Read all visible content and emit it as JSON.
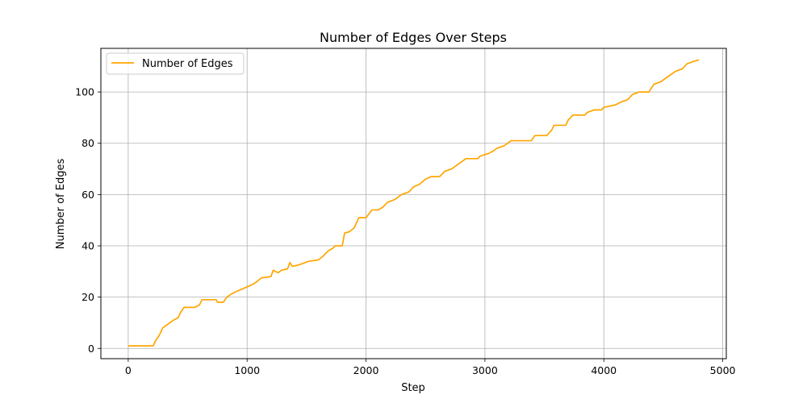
{
  "chart_data": {
    "type": "line",
    "title": "Number of Edges Over Steps",
    "xlabel": "Step",
    "ylabel": "Number of Edges",
    "xlim": [
      -230,
      5030
    ],
    "ylim": [
      -4,
      117
    ],
    "xticks": [
      0,
      1000,
      2000,
      3000,
      4000,
      5000
    ],
    "yticks": [
      0,
      20,
      40,
      60,
      80,
      100
    ],
    "grid": true,
    "legend_position": "top-left",
    "series": [
      {
        "name": "Number of Edges",
        "color": "#ffa500",
        "points": [
          [
            0,
            1
          ],
          [
            210,
            1
          ],
          [
            230,
            3
          ],
          [
            260,
            5
          ],
          [
            290,
            8
          ],
          [
            320,
            9
          ],
          [
            350,
            10
          ],
          [
            380,
            11
          ],
          [
            420,
            12
          ],
          [
            440,
            14
          ],
          [
            470,
            16
          ],
          [
            560,
            16
          ],
          [
            600,
            17
          ],
          [
            620,
            19
          ],
          [
            740,
            19
          ],
          [
            750,
            18
          ],
          [
            800,
            18
          ],
          [
            830,
            20
          ],
          [
            860,
            21
          ],
          [
            900,
            22
          ],
          [
            950,
            23
          ],
          [
            1000,
            24
          ],
          [
            1050,
            25
          ],
          [
            1080,
            26
          ],
          [
            1120,
            27.5
          ],
          [
            1200,
            28
          ],
          [
            1220,
            30.5
          ],
          [
            1240,
            30
          ],
          [
            1260,
            29.5
          ],
          [
            1290,
            30.5
          ],
          [
            1340,
            31
          ],
          [
            1360,
            33.5
          ],
          [
            1380,
            32
          ],
          [
            1430,
            32.5
          ],
          [
            1460,
            33
          ],
          [
            1520,
            34
          ],
          [
            1600,
            34.5
          ],
          [
            1640,
            36
          ],
          [
            1680,
            38
          ],
          [
            1720,
            39
          ],
          [
            1740,
            40
          ],
          [
            1800,
            40
          ],
          [
            1820,
            45
          ],
          [
            1860,
            45.5
          ],
          [
            1900,
            47
          ],
          [
            1940,
            51
          ],
          [
            2000,
            51
          ],
          [
            2050,
            54
          ],
          [
            2100,
            54
          ],
          [
            2140,
            55
          ],
          [
            2180,
            57
          ],
          [
            2240,
            58
          ],
          [
            2300,
            60
          ],
          [
            2360,
            61
          ],
          [
            2400,
            63
          ],
          [
            2450,
            64
          ],
          [
            2500,
            66
          ],
          [
            2550,
            67
          ],
          [
            2620,
            67
          ],
          [
            2660,
            69
          ],
          [
            2720,
            70
          ],
          [
            2780,
            72
          ],
          [
            2840,
            74
          ],
          [
            2940,
            74
          ],
          [
            2960,
            75
          ],
          [
            3030,
            76
          ],
          [
            3070,
            77
          ],
          [
            3100,
            78
          ],
          [
            3160,
            79
          ],
          [
            3220,
            81
          ],
          [
            3390,
            81
          ],
          [
            3420,
            83
          ],
          [
            3520,
            83
          ],
          [
            3560,
            85
          ],
          [
            3580,
            87
          ],
          [
            3680,
            87
          ],
          [
            3700,
            89
          ],
          [
            3740,
            91
          ],
          [
            3840,
            91
          ],
          [
            3860,
            92
          ],
          [
            3920,
            93
          ],
          [
            3980,
            93
          ],
          [
            4000,
            94
          ],
          [
            4100,
            95
          ],
          [
            4140,
            96
          ],
          [
            4200,
            97
          ],
          [
            4240,
            99
          ],
          [
            4300,
            100
          ],
          [
            4380,
            100
          ],
          [
            4420,
            103
          ],
          [
            4480,
            104
          ],
          [
            4540,
            106
          ],
          [
            4600,
            108
          ],
          [
            4660,
            109
          ],
          [
            4700,
            111
          ],
          [
            4760,
            112
          ],
          [
            4800,
            112.5
          ]
        ]
      }
    ]
  }
}
